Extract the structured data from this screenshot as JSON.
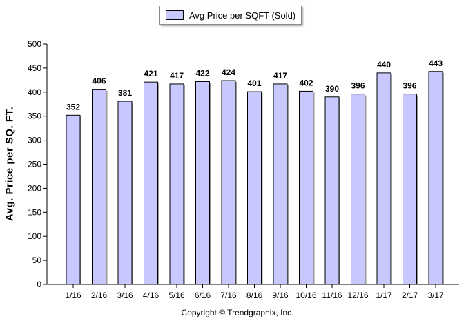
{
  "chart_data": {
    "type": "bar",
    "categories": [
      "1/16",
      "2/16",
      "3/16",
      "4/16",
      "5/16",
      "6/16",
      "7/16",
      "8/16",
      "9/16",
      "10/16",
      "11/16",
      "12/16",
      "1/17",
      "2/17",
      "3/17"
    ],
    "series": [
      {
        "name": "Avg Price per SQFT (Sold)",
        "values": [
          352,
          406,
          381,
          421,
          417,
          422,
          424,
          401,
          417,
          402,
          390,
          396,
          440,
          396,
          443
        ]
      }
    ],
    "ylabel": "Avg. Price per SQ. FT.",
    "xlabel": "",
    "ylim": [
      0,
      500
    ],
    "yticks": [
      0,
      50,
      100,
      150,
      200,
      250,
      300,
      350,
      400,
      450,
      500
    ],
    "grid": false,
    "legend": "top-center",
    "data_labels": true,
    "colors": {
      "bar_fill": "#c8c8ff",
      "bar_stroke": "#000000"
    }
  },
  "legend": {
    "label": "Avg Price per SQFT (Sold)"
  },
  "copyright": "Copyright © Trendgraphix, Inc."
}
